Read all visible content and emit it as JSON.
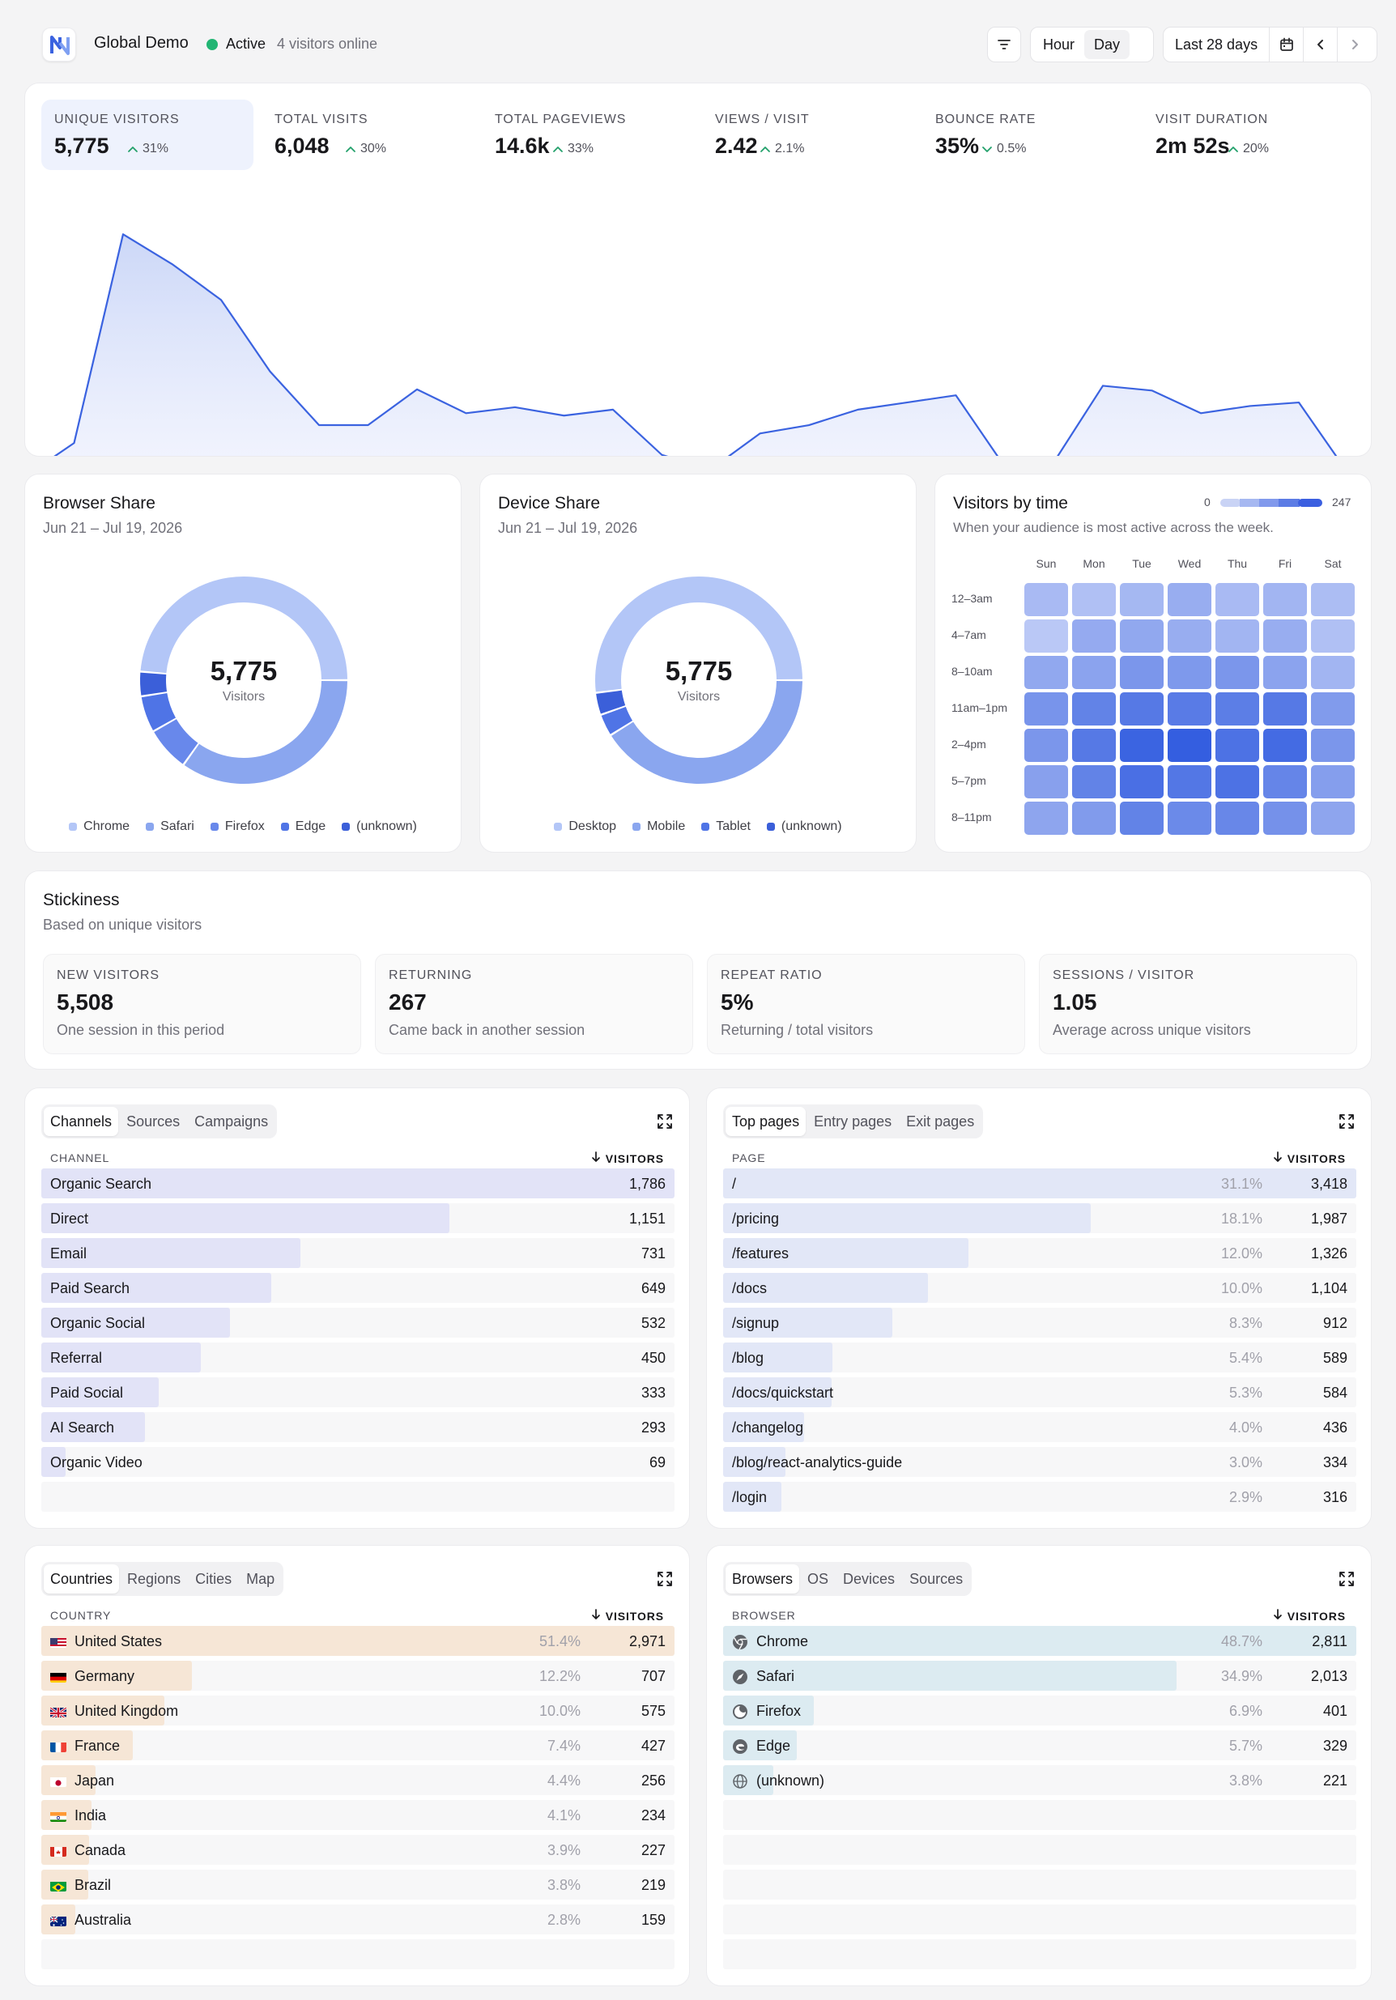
{
  "header": {
    "site_name": "Global Demo",
    "status": "Active",
    "visitors_online": "4 visitors online",
    "granularity": [
      "Hour",
      "Day"
    ],
    "granularity_selected": "Day",
    "date_range": "Last 28 days"
  },
  "kpis": [
    {
      "label": "UNIQUE VISITORS",
      "value": "5,775",
      "delta": "31%",
      "direction": "up"
    },
    {
      "label": "TOTAL VISITS",
      "value": "6,048",
      "delta": "30%",
      "direction": "up"
    },
    {
      "label": "TOTAL PAGEVIEWS",
      "value": "14.6k",
      "delta": "33%",
      "direction": "up"
    },
    {
      "label": "VIEWS / VISIT",
      "value": "2.42",
      "delta": "2.1%",
      "direction": "up"
    },
    {
      "label": "BOUNCE RATE",
      "value": "35%",
      "delta": "0.5%",
      "direction": "down"
    },
    {
      "label": "VISIT DURATION",
      "value": "2m 52s",
      "delta": "20%",
      "direction": "up"
    }
  ],
  "chart_data": [
    {
      "type": "area",
      "title": "",
      "xlabel": "",
      "ylabel": "",
      "grid": false,
      "series": [
        {
          "values": [
            52,
            80,
            255,
            230,
            200,
            140,
            95,
            95,
            125,
            105,
            110,
            103,
            108,
            70,
            58,
            88,
            95,
            108,
            114,
            120,
            60,
            64,
            128,
            124,
            105,
            111,
            114,
            55,
            30
          ]
        }
      ],
      "last_point_partial": true,
      "ylim": [
        0,
        300
      ]
    },
    {
      "type": "pie",
      "title": "Browser Share",
      "subtitle": "Jun 21 – Jul 19, 2026",
      "center_value": "5,775",
      "center_label": "Visitors",
      "labels": [
        "Chrome",
        "Safari",
        "Firefox",
        "Edge",
        "(unknown)"
      ],
      "values": [
        2811,
        2013,
        401,
        329,
        221
      ]
    },
    {
      "type": "pie",
      "title": "Device Share",
      "subtitle": "Jun 21 – Jul 19, 2026",
      "center_value": "5,775",
      "center_label": "Visitors",
      "labels": [
        "Desktop",
        "Mobile",
        "Tablet",
        "(unknown)"
      ],
      "values": [
        3000,
        2375,
        200,
        200
      ]
    },
    {
      "type": "heatmap",
      "title": "Visitors by time",
      "subtitle": "When your audience is most active across the week.",
      "scale_min": "0",
      "scale_max": "247",
      "columns": [
        "Sun",
        "Mon",
        "Tue",
        "Wed",
        "Thu",
        "Fri",
        "Sat"
      ],
      "rows": [
        "12–3am",
        "4–7am",
        "8–10am",
        "11am–1pm",
        "2–4pm",
        "5–7pm",
        "8–11pm"
      ],
      "values": [
        [
          60,
          50,
          65,
          85,
          60,
          70,
          55
        ],
        [
          35,
          90,
          95,
          85,
          70,
          85,
          50
        ],
        [
          95,
          105,
          130,
          125,
          130,
          105,
          70
        ],
        [
          135,
          170,
          190,
          185,
          180,
          190,
          120
        ],
        [
          130,
          190,
          235,
          247,
          205,
          220,
          130
        ],
        [
          110,
          170,
          210,
          195,
          205,
          165,
          115
        ],
        [
          100,
          120,
          170,
          155,
          160,
          140,
          100
        ]
      ]
    }
  ],
  "colors": {
    "accent": "#3b63e0",
    "chart_fill_top": "#c9d5f7",
    "chart_fill_bottom": "#f6f7ff",
    "donut": [
      "#b3c6f7",
      "#8aa6ef",
      "#6888eb",
      "#4f74e6",
      "#3b5fd9"
    ],
    "positive": "#22a06b",
    "bar_indigo": "#e2e3f7",
    "bar_page": "#e2e7f7",
    "bar_country": "#f6e6d6",
    "bar_browser": "#dcebf1"
  },
  "stickiness": {
    "title": "Stickiness",
    "subtitle": "Based on unique visitors",
    "items": [
      {
        "label": "NEW VISITORS",
        "value": "5,508",
        "desc": "One session in this period"
      },
      {
        "label": "RETURNING",
        "value": "267",
        "desc": "Came back in another session"
      },
      {
        "label": "REPEAT RATIO",
        "value": "5%",
        "desc": "Returning / total visitors"
      },
      {
        "label": "SESSIONS / VISITOR",
        "value": "1.05",
        "desc": "Average across unique visitors"
      }
    ]
  },
  "channels_panel": {
    "tabs": [
      "Channels",
      "Sources",
      "Campaigns"
    ],
    "active_tab": "Channels",
    "col_label": "CHANNEL",
    "col_value": "VISITORS",
    "rows": [
      {
        "name": "Organic Search",
        "value": "1,786",
        "share": 1.0
      },
      {
        "name": "Direct",
        "value": "1,151",
        "share": 0.644
      },
      {
        "name": "Email",
        "value": "731",
        "share": 0.409
      },
      {
        "name": "Paid Search",
        "value": "649",
        "share": 0.363
      },
      {
        "name": "Organic Social",
        "value": "532",
        "share": 0.298
      },
      {
        "name": "Referral",
        "value": "450",
        "share": 0.252
      },
      {
        "name": "Paid Social",
        "value": "333",
        "share": 0.186
      },
      {
        "name": "AI Search",
        "value": "293",
        "share": 0.164
      },
      {
        "name": "Organic Video",
        "value": "69",
        "share": 0.039
      }
    ]
  },
  "pages_panel": {
    "tabs": [
      "Top pages",
      "Entry pages",
      "Exit pages"
    ],
    "active_tab": "Top pages",
    "col_label": "PAGE",
    "col_value": "VISITORS",
    "rows": [
      {
        "name": "/",
        "pct": "31.1%",
        "value": "3,418",
        "share": 1.0
      },
      {
        "name": "/pricing",
        "pct": "18.1%",
        "value": "1,987",
        "share": 0.581
      },
      {
        "name": "/features",
        "pct": "12.0%",
        "value": "1,326",
        "share": 0.388
      },
      {
        "name": "/docs",
        "pct": "10.0%",
        "value": "1,104",
        "share": 0.323
      },
      {
        "name": "/signup",
        "pct": "8.3%",
        "value": "912",
        "share": 0.267
      },
      {
        "name": "/blog",
        "pct": "5.4%",
        "value": "589",
        "share": 0.172
      },
      {
        "name": "/docs/quickstart",
        "pct": "5.3%",
        "value": "584",
        "share": 0.171
      },
      {
        "name": "/changelog",
        "pct": "4.0%",
        "value": "436",
        "share": 0.128
      },
      {
        "name": "/blog/react-analytics-guide",
        "pct": "3.0%",
        "value": "334",
        "share": 0.098
      },
      {
        "name": "/login",
        "pct": "2.9%",
        "value": "316",
        "share": 0.092
      }
    ]
  },
  "countries_panel": {
    "tabs": [
      "Countries",
      "Regions",
      "Cities",
      "Map"
    ],
    "active_tab": "Countries",
    "col_label": "COUNTRY",
    "col_value": "VISITORS",
    "rows": [
      {
        "name": "United States",
        "flag": "us",
        "pct": "51.4%",
        "value": "2,971",
        "share": 1.0
      },
      {
        "name": "Germany",
        "flag": "de",
        "pct": "12.2%",
        "value": "707",
        "share": 0.238
      },
      {
        "name": "United Kingdom",
        "flag": "gb",
        "pct": "10.0%",
        "value": "575",
        "share": 0.194
      },
      {
        "name": "France",
        "flag": "fr",
        "pct": "7.4%",
        "value": "427",
        "share": 0.144
      },
      {
        "name": "Japan",
        "flag": "jp",
        "pct": "4.4%",
        "value": "256",
        "share": 0.086
      },
      {
        "name": "India",
        "flag": "in",
        "pct": "4.1%",
        "value": "234",
        "share": 0.079
      },
      {
        "name": "Canada",
        "flag": "ca",
        "pct": "3.9%",
        "value": "227",
        "share": 0.076
      },
      {
        "name": "Brazil",
        "flag": "br",
        "pct": "3.8%",
        "value": "219",
        "share": 0.074
      },
      {
        "name": "Australia",
        "flag": "au",
        "pct": "2.8%",
        "value": "159",
        "share": 0.054
      }
    ]
  },
  "browsers_panel": {
    "tabs": [
      "Browsers",
      "OS",
      "Devices",
      "Sources"
    ],
    "active_tab": "Browsers",
    "col_label": "BROWSER",
    "col_value": "VISITORS",
    "rows": [
      {
        "name": "Chrome",
        "icon": "chrome-icon",
        "pct": "48.7%",
        "value": "2,811",
        "share": 1.0
      },
      {
        "name": "Safari",
        "icon": "safari-icon",
        "pct": "34.9%",
        "value": "2,013",
        "share": 0.716
      },
      {
        "name": "Firefox",
        "icon": "firefox-icon",
        "pct": "6.9%",
        "value": "401",
        "share": 0.143
      },
      {
        "name": "Edge",
        "icon": "edge-icon",
        "pct": "5.7%",
        "value": "329",
        "share": 0.117
      },
      {
        "name": "(unknown)",
        "icon": "globe-icon",
        "pct": "3.8%",
        "value": "221",
        "share": 0.079
      }
    ]
  }
}
